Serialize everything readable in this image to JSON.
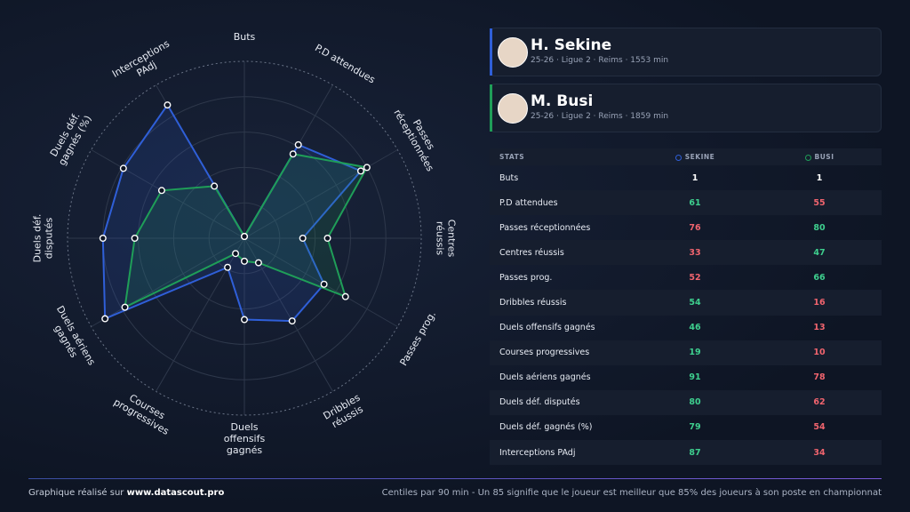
{
  "chart_data": {
    "type": "radar",
    "categories": [
      "Buts",
      "P.D attendues",
      "Passes réceptionnées",
      "Centres réussis",
      "Passes prog.",
      "Dribbles réussis",
      "Duels offensifs gagnés",
      "Courses progressives",
      "Duels aériens gagnés",
      "Duels déf. disputés",
      "Duels déf. gagnés (%)",
      "Interceptions PAdj"
    ],
    "series": [
      {
        "name": "H. Sekine",
        "color": "#2f5fd8",
        "values": [
          1,
          61,
          76,
          33,
          52,
          54,
          46,
          19,
          91,
          80,
          79,
          87
        ]
      },
      {
        "name": "M. Busi",
        "color": "#1f9e58",
        "values": [
          1,
          55,
          80,
          47,
          66,
          16,
          13,
          10,
          78,
          62,
          54,
          34
        ]
      }
    ],
    "rlim": [
      0,
      100
    ],
    "rticks": [
      20,
      40,
      60,
      80,
      100
    ]
  },
  "players": [
    {
      "info": "25-26 · Ligue 2 · Reims · 1553 min"
    },
    {
      "info": "25-26 · Ligue 2 · Reims · 1859 min"
    }
  ],
  "table": {
    "headers": [
      "STATS",
      "SEKINE",
      "BUSI"
    ]
  },
  "footer": {
    "credit": "Graphique réalisé sur",
    "site": "www.datascout.pro",
    "note": "Centiles par 90 min - Un 85 signifie que le joueur est meilleur que 85% des joueurs à son poste en championnat"
  }
}
